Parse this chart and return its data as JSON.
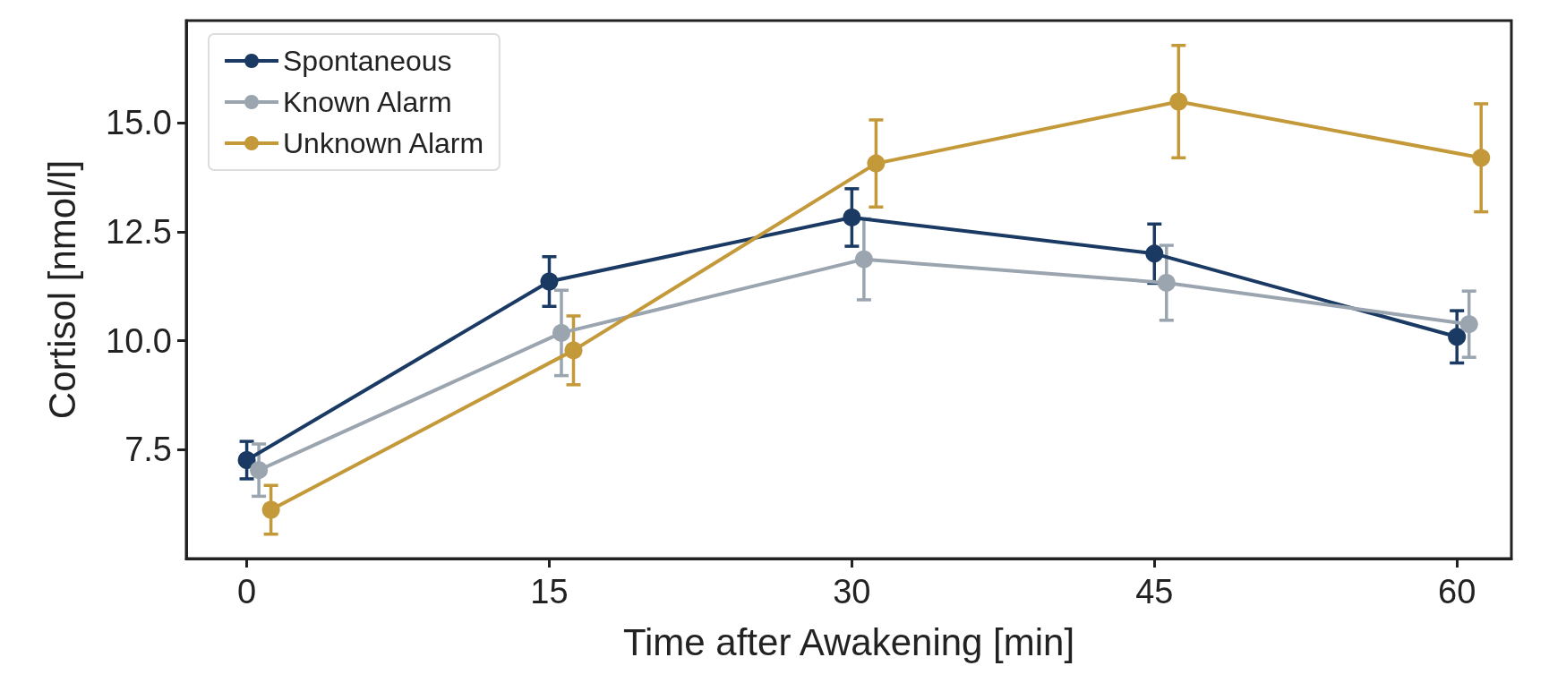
{
  "chart_data": {
    "type": "line",
    "xlabel": "Time after Awakening [min]",
    "ylabel": "Cortisol [nmol/l]",
    "xlim": [
      -3,
      62.7
    ],
    "ylim": [
      5.0,
      17.35
    ],
    "xticks": [
      0,
      15,
      30,
      45,
      60
    ],
    "yticks": [
      {
        "value": 7.5,
        "label": "7.5"
      },
      {
        "value": 10,
        "label": "10.0"
      },
      {
        "value": 12.5,
        "label": "12.5"
      },
      {
        "value": 15,
        "label": "15.0"
      }
    ],
    "grid": false,
    "legend": "top left",
    "marker": "circle",
    "line_style": "solid",
    "series": [
      {
        "name": "Spontaneous",
        "color": "#1a3a64",
        "x": [
          0,
          15,
          30,
          45,
          60
        ],
        "values": [
          7.26,
          11.36,
          12.83,
          12.0,
          10.09
        ],
        "errors": [
          0.43,
          0.57,
          0.66,
          0.68,
          0.6
        ]
      },
      {
        "name": "Known Alarm",
        "color": "#9aa5b0",
        "x": [
          0.6,
          15.6,
          30.6,
          45.6,
          60.6
        ],
        "values": [
          7.03,
          10.18,
          11.87,
          11.33,
          10.38
        ],
        "errors": [
          0.6,
          0.98,
          0.93,
          0.86,
          0.76
        ]
      },
      {
        "name": "Unknown Alarm",
        "color": "#c4993a",
        "x": [
          1.2,
          16.2,
          31.2,
          46.2,
          61.2
        ],
        "values": [
          6.12,
          9.78,
          14.07,
          15.49,
          14.2
        ],
        "errors": [
          0.56,
          0.79,
          1.0,
          1.29,
          1.24
        ]
      }
    ]
  }
}
